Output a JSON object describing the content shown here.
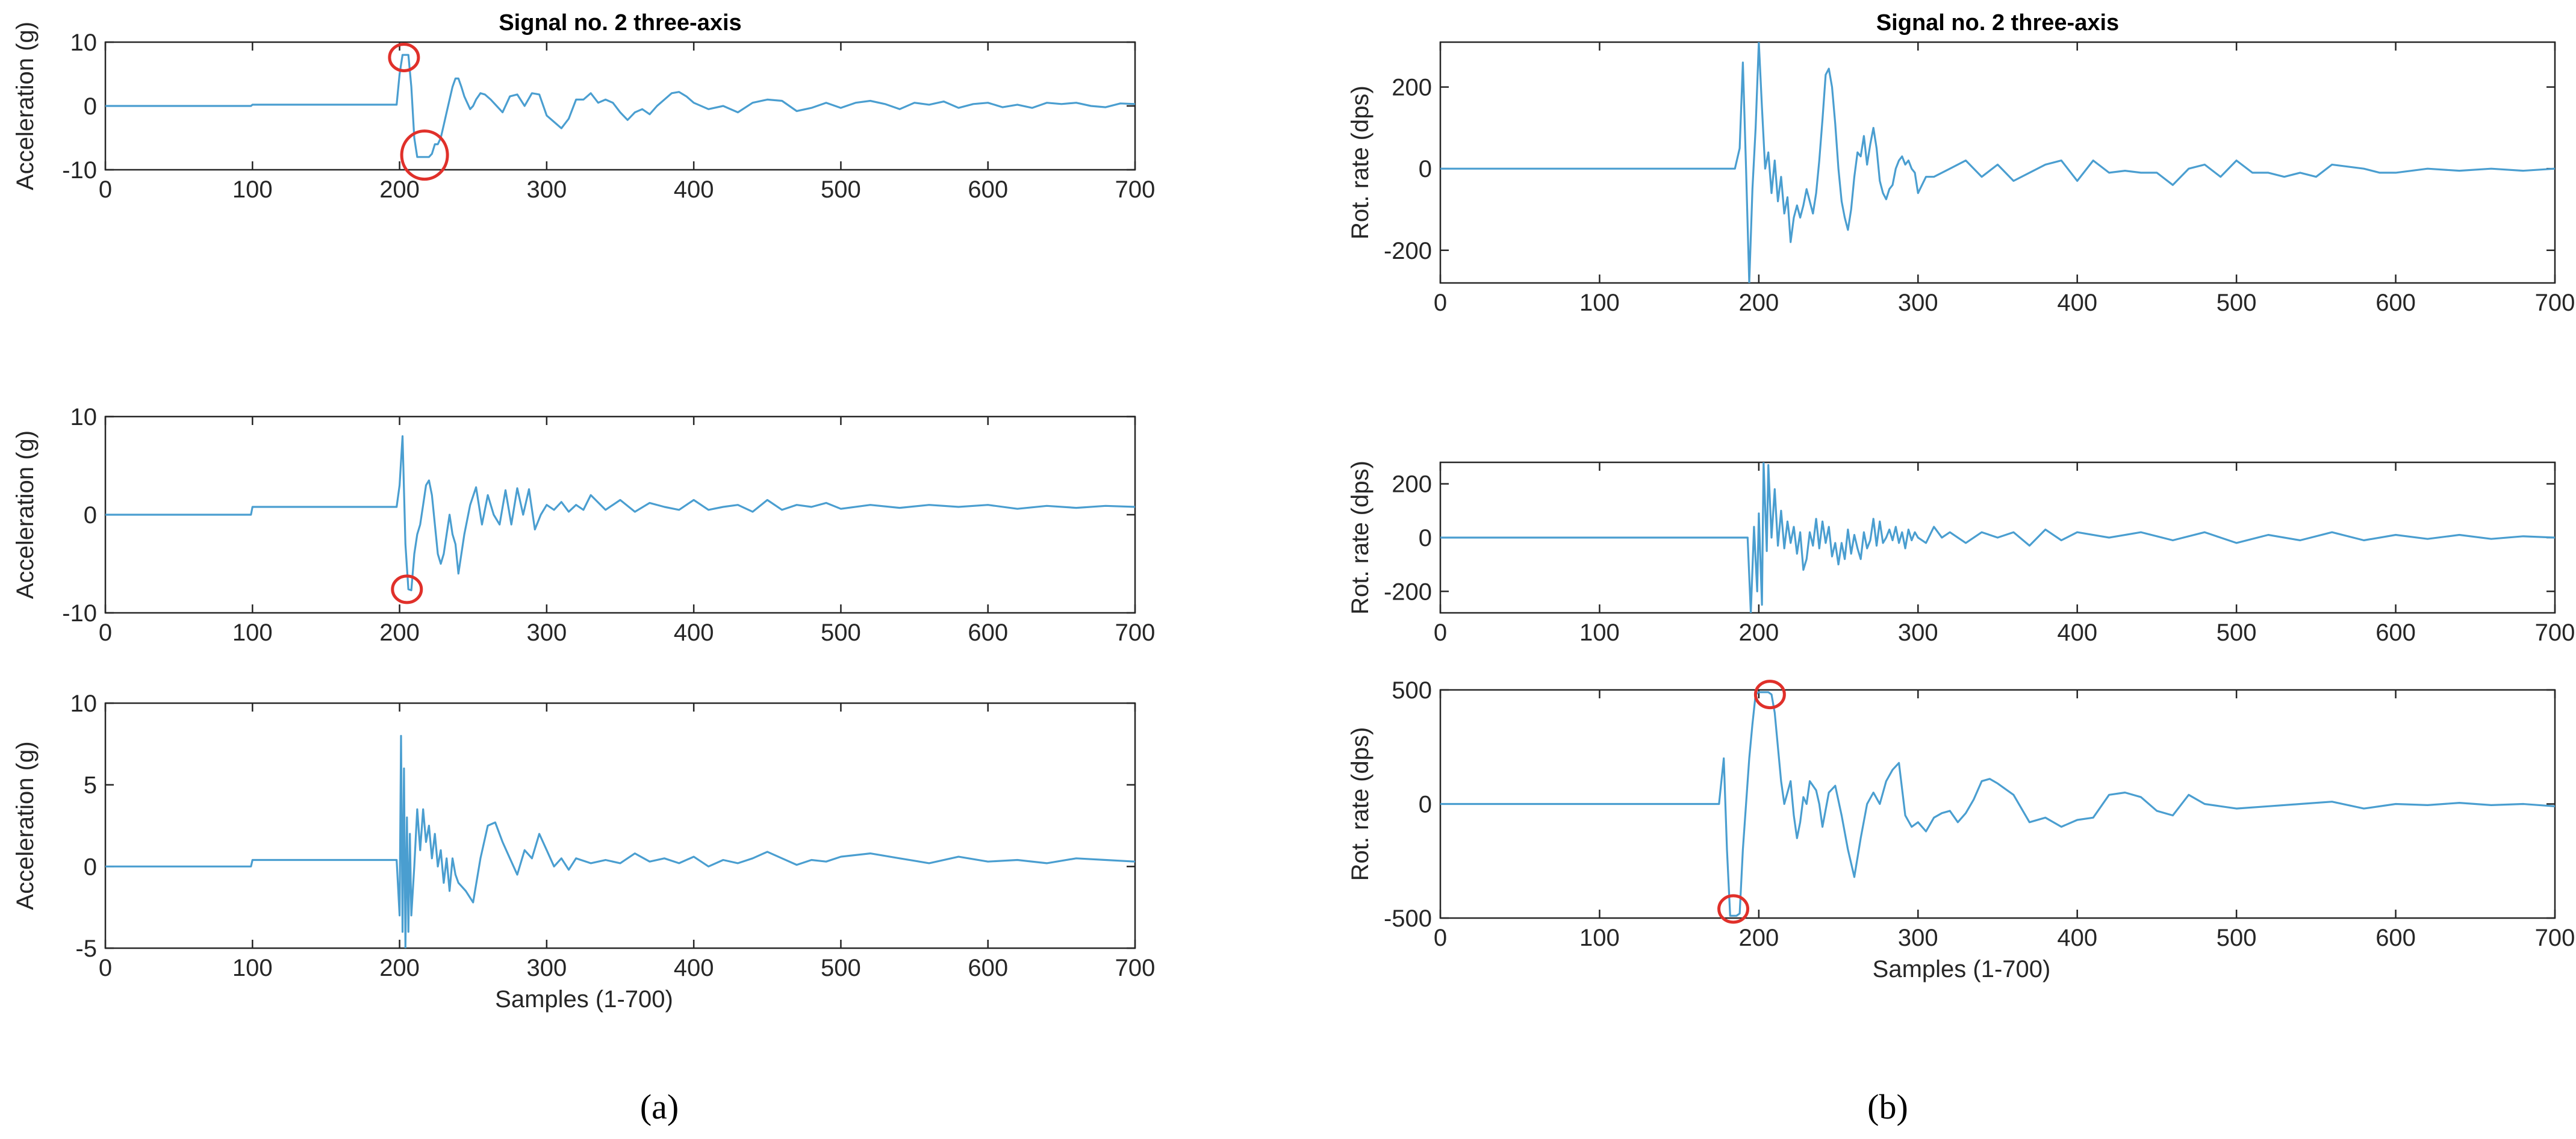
{
  "figure": {
    "captions": [
      "(a)",
      "(b)"
    ]
  },
  "chart_data": [
    {
      "id": "a1",
      "type": "line",
      "title": "Signal no. 2 three-axis",
      "xlabel": "",
      "ylabel": "Acceleration (g)",
      "xlim": [
        0,
        700
      ],
      "ylim": [
        -10,
        10
      ],
      "xticks": [
        0,
        100,
        200,
        300,
        400,
        500,
        600,
        700
      ],
      "yticks": [
        -10,
        0,
        10
      ],
      "color": "#4a9ed0",
      "x": [
        0,
        99,
        100,
        198,
        200,
        202,
        204,
        206,
        208,
        210,
        212,
        214,
        216,
        218,
        220,
        222,
        224,
        226,
        228,
        230,
        232,
        234,
        236,
        238,
        240,
        242,
        244,
        246,
        248,
        250,
        252,
        255,
        258,
        262,
        266,
        270,
        275,
        280,
        285,
        290,
        295,
        300,
        305,
        310,
        315,
        320,
        325,
        330,
        335,
        340,
        345,
        350,
        355,
        360,
        365,
        370,
        375,
        380,
        385,
        390,
        395,
        400,
        410,
        420,
        430,
        440,
        450,
        460,
        470,
        480,
        490,
        500,
        510,
        520,
        530,
        540,
        550,
        560,
        570,
        580,
        590,
        600,
        610,
        620,
        630,
        640,
        650,
        660,
        670,
        680,
        690,
        700
      ],
      "y": [
        0,
        0,
        0.2,
        0.2,
        5,
        8,
        8,
        8,
        3,
        -5,
        -8,
        -8,
        -8,
        -8,
        -8,
        -7.5,
        -6,
        -6,
        -5,
        -3,
        -1,
        1,
        3,
        4.3,
        4.3,
        3,
        1.5,
        0.5,
        -0.5,
        0,
        1,
        2,
        1.8,
        1,
        0,
        -1,
        1.5,
        1.8,
        0,
        2,
        1.8,
        -1.5,
        -2.5,
        -3.5,
        -2,
        1,
        1,
        2,
        0.5,
        1,
        0.5,
        -1,
        -2.2,
        -1,
        -0.5,
        -1.3,
        0,
        1,
        2,
        2.2,
        1.5,
        0.5,
        -0.5,
        0,
        -1,
        0.5,
        1,
        0.8,
        -0.8,
        -0.3,
        0.5,
        -0.3,
        0.5,
        0.8,
        0.3,
        -0.5,
        0.5,
        0.2,
        0.7,
        -0.3,
        0.3,
        0.5,
        -0.2,
        0.2,
        -0.3,
        0.5,
        0.3,
        0.5,
        0,
        -0.2,
        0.4,
        0.3
      ],
      "annotations": [
        {
          "label": "red-circle-peak",
          "x": 203,
          "y": 7.6
        },
        {
          "label": "red-circle-trough",
          "x": 217,
          "y": -7.7
        }
      ]
    },
    {
      "id": "a2",
      "type": "line",
      "title": "",
      "xlabel": "",
      "ylabel": "Acceleration (g)",
      "xlim": [
        0,
        700
      ],
      "ylim": [
        -10,
        10
      ],
      "xticks": [
        0,
        100,
        200,
        300,
        400,
        500,
        600,
        700
      ],
      "yticks": [
        -10,
        0,
        10
      ],
      "color": "#4a9ed0",
      "x": [
        0,
        99,
        100,
        198,
        200,
        202,
        204,
        206,
        208,
        210,
        212,
        214,
        216,
        218,
        220,
        222,
        224,
        226,
        228,
        230,
        232,
        234,
        236,
        238,
        240,
        244,
        248,
        252,
        256,
        260,
        264,
        268,
        272,
        276,
        280,
        284,
        288,
        292,
        296,
        300,
        305,
        310,
        315,
        320,
        325,
        330,
        340,
        350,
        360,
        370,
        380,
        390,
        400,
        410,
        420,
        430,
        440,
        450,
        460,
        470,
        480,
        490,
        500,
        520,
        540,
        560,
        580,
        600,
        620,
        640,
        660,
        680,
        700
      ],
      "y": [
        0,
        0,
        0.8,
        0.8,
        3,
        8,
        -3,
        -7.6,
        -7.7,
        -4,
        -2,
        -1,
        1,
        3,
        3.5,
        2,
        -1,
        -4,
        -5,
        -4,
        -2,
        0,
        -2,
        -3,
        -6,
        -2,
        1,
        2.8,
        -1,
        2,
        0,
        -1,
        2.5,
        -1,
        2.7,
        0,
        2.6,
        -1.5,
        0,
        1,
        0.5,
        1.3,
        0.3,
        1,
        0.5,
        2,
        0.5,
        1.5,
        0.3,
        1.2,
        0.8,
        0.5,
        1.5,
        0.5,
        0.8,
        1,
        0.3,
        1.5,
        0.5,
        1,
        0.8,
        1.2,
        0.6,
        1,
        0.7,
        1,
        0.8,
        1,
        0.6,
        0.9,
        0.7,
        0.9,
        0.8
      ],
      "annotations": [
        {
          "label": "red-circle-trough",
          "x": 205,
          "y": -7.6
        }
      ]
    },
    {
      "id": "a3",
      "type": "line",
      "title": "",
      "xlabel": "Samples (1-700)",
      "ylabel": "Acceleration (g)",
      "xlim": [
        0,
        700
      ],
      "ylim": [
        -5,
        10
      ],
      "xticks": [
        0,
        100,
        200,
        300,
        400,
        500,
        600,
        700
      ],
      "yticks": [
        -5,
        0,
        5,
        10
      ],
      "color": "#4a9ed0",
      "x": [
        0,
        99,
        100,
        198,
        200,
        201,
        202,
        203,
        204,
        205,
        206,
        207,
        208,
        210,
        212,
        214,
        216,
        218,
        220,
        222,
        224,
        226,
        228,
        230,
        232,
        234,
        236,
        238,
        240,
        245,
        250,
        255,
        260,
        265,
        270,
        275,
        280,
        285,
        290,
        295,
        300,
        305,
        310,
        315,
        320,
        330,
        340,
        350,
        360,
        370,
        380,
        390,
        400,
        410,
        420,
        430,
        440,
        450,
        460,
        470,
        480,
        490,
        500,
        520,
        540,
        560,
        580,
        600,
        620,
        640,
        660,
        680,
        700
      ],
      "y": [
        0,
        0,
        0.4,
        0.4,
        -3,
        8,
        -4,
        6,
        -5,
        3,
        -4,
        2,
        -3,
        0,
        3.5,
        1,
        3.5,
        1.5,
        2.5,
        0.5,
        2,
        0,
        1,
        -1,
        0.5,
        -1.5,
        0.5,
        -0.5,
        -1,
        -1.5,
        -2.2,
        0.5,
        2.5,
        2.7,
        1.5,
        0.5,
        -0.5,
        1,
        0.5,
        2,
        1,
        0,
        0.5,
        -0.2,
        0.5,
        0.2,
        0.4,
        0.2,
        0.8,
        0.3,
        0.5,
        0.2,
        0.6,
        0,
        0.4,
        0.2,
        0.5,
        0.9,
        0.5,
        0.1,
        0.4,
        0.3,
        0.6,
        0.8,
        0.5,
        0.2,
        0.6,
        0.3,
        0.4,
        0.2,
        0.5,
        0.4,
        0.3
      ],
      "annotations": []
    },
    {
      "id": "b1",
      "type": "line",
      "title": "Signal no. 2 three-axis",
      "xlabel": "",
      "ylabel": "Rot. rate (dps)",
      "xlim": [
        0,
        700
      ],
      "ylim": [
        -280,
        310
      ],
      "xticks": [
        0,
        100,
        200,
        300,
        400,
        500,
        600,
        700
      ],
      "yticks": [
        -200,
        0,
        200
      ],
      "color": "#4a9ed0",
      "x": [
        0,
        185,
        188,
        190,
        192,
        194,
        196,
        198,
        200,
        202,
        204,
        206,
        208,
        210,
        212,
        214,
        216,
        218,
        220,
        222,
        224,
        226,
        228,
        230,
        232,
        234,
        236,
        238,
        240,
        242,
        244,
        246,
        248,
        250,
        252,
        254,
        256,
        258,
        260,
        262,
        264,
        266,
        268,
        270,
        272,
        274,
        276,
        278,
        280,
        282,
        284,
        286,
        288,
        290,
        292,
        294,
        296,
        298,
        300,
        305,
        310,
        320,
        330,
        340,
        350,
        360,
        370,
        380,
        390,
        400,
        410,
        420,
        430,
        440,
        450,
        460,
        470,
        480,
        490,
        500,
        510,
        520,
        530,
        540,
        550,
        560,
        570,
        580,
        590,
        600,
        620,
        640,
        660,
        680,
        700
      ],
      "y": [
        0,
        0,
        50,
        260,
        0,
        -280,
        -50,
        100,
        310,
        150,
        0,
        40,
        -60,
        20,
        -80,
        -20,
        -110,
        -70,
        -180,
        -120,
        -90,
        -120,
        -90,
        -50,
        -80,
        -110,
        -60,
        20,
        120,
        230,
        245,
        200,
        110,
        0,
        -80,
        -120,
        -150,
        -100,
        -20,
        40,
        30,
        80,
        10,
        60,
        100,
        50,
        -30,
        -60,
        -75,
        -50,
        -40,
        0,
        20,
        30,
        10,
        20,
        0,
        -10,
        -60,
        -20,
        -20,
        0,
        20,
        -20,
        10,
        -30,
        -10,
        10,
        20,
        -30,
        20,
        -10,
        -5,
        -10,
        -10,
        -40,
        0,
        10,
        -20,
        20,
        -10,
        -10,
        -20,
        -10,
        -20,
        10,
        5,
        0,
        -10,
        -10,
        0,
        -5,
        0,
        -5,
        0
      ],
      "annotations": []
    },
    {
      "id": "b2",
      "type": "line",
      "title": "",
      "xlabel": "",
      "ylabel": "Rot. rate (dps)",
      "xlim": [
        0,
        700
      ],
      "ylim": [
        -280,
        280
      ],
      "xticks": [
        0,
        100,
        200,
        300,
        400,
        500,
        600,
        700
      ],
      "yticks": [
        -200,
        0,
        200
      ],
      "color": "#4a9ed0",
      "x": [
        0,
        193,
        195,
        197,
        199,
        200,
        202,
        203,
        205,
        206,
        208,
        210,
        212,
        214,
        216,
        218,
        220,
        222,
        224,
        226,
        228,
        230,
        232,
        234,
        236,
        238,
        240,
        242,
        244,
        246,
        248,
        250,
        252,
        254,
        256,
        258,
        260,
        262,
        264,
        266,
        268,
        270,
        272,
        274,
        276,
        278,
        280,
        282,
        284,
        286,
        288,
        290,
        292,
        294,
        296,
        298,
        300,
        305,
        310,
        315,
        320,
        330,
        340,
        350,
        360,
        370,
        380,
        390,
        400,
        420,
        440,
        460,
        480,
        500,
        520,
        540,
        560,
        580,
        600,
        620,
        640,
        660,
        680,
        700
      ],
      "y": [
        0,
        0,
        -280,
        40,
        -200,
        90,
        -250,
        280,
        -50,
        270,
        0,
        180,
        -30,
        100,
        -40,
        60,
        -20,
        40,
        -60,
        20,
        -120,
        -80,
        20,
        -30,
        70,
        -40,
        60,
        -20,
        40,
        -70,
        -20,
        -100,
        -20,
        -80,
        30,
        -60,
        10,
        -40,
        -80,
        20,
        -40,
        -10,
        70,
        -30,
        60,
        -20,
        0,
        30,
        -10,
        40,
        -20,
        20,
        -40,
        30,
        -10,
        20,
        0,
        -20,
        40,
        0,
        20,
        -20,
        20,
        0,
        20,
        -30,
        30,
        -10,
        20,
        0,
        20,
        -10,
        20,
        -20,
        10,
        -10,
        20,
        -10,
        10,
        -5,
        10,
        -5,
        5,
        0
      ],
      "annotations": []
    },
    {
      "id": "b3",
      "type": "line",
      "title": "",
      "xlabel": "Samples (1-700)",
      "ylabel": "Rot. rate (dps)",
      "xlim": [
        0,
        700
      ],
      "ylim": [
        -500,
        500
      ],
      "xticks": [
        0,
        100,
        200,
        300,
        400,
        500,
        600,
        700
      ],
      "yticks": [
        -500,
        0,
        500
      ],
      "color": "#4a9ed0",
      "x": [
        0,
        175,
        178,
        180,
        182,
        184,
        186,
        188,
        190,
        192,
        194,
        196,
        198,
        200,
        202,
        204,
        206,
        208,
        210,
        212,
        214,
        216,
        218,
        220,
        222,
        224,
        226,
        228,
        230,
        232,
        234,
        236,
        238,
        240,
        244,
        248,
        252,
        256,
        260,
        264,
        268,
        272,
        276,
        280,
        284,
        288,
        292,
        296,
        300,
        305,
        310,
        315,
        320,
        325,
        330,
        335,
        340,
        345,
        350,
        360,
        370,
        380,
        390,
        400,
        410,
        420,
        430,
        440,
        450,
        460,
        470,
        480,
        490,
        500,
        520,
        540,
        560,
        580,
        600,
        620,
        640,
        660,
        680,
        700
      ],
      "y": [
        0,
        0,
        200,
        -200,
        -490,
        -490,
        -490,
        -480,
        -200,
        0,
        200,
        350,
        480,
        490,
        490,
        490,
        490,
        480,
        400,
        250,
        100,
        0,
        50,
        100,
        -50,
        -150,
        -80,
        30,
        0,
        100,
        80,
        60,
        0,
        -100,
        50,
        80,
        -50,
        -200,
        -320,
        -150,
        0,
        50,
        0,
        100,
        150,
        180,
        -50,
        -100,
        -80,
        -120,
        -60,
        -40,
        -30,
        -80,
        -40,
        20,
        100,
        110,
        90,
        40,
        -80,
        -60,
        -100,
        -70,
        -60,
        40,
        50,
        30,
        -30,
        -50,
        40,
        0,
        -10,
        -20,
        -10,
        0,
        10,
        -20,
        0,
        -5,
        5,
        -5,
        0,
        -10
      ],
      "annotations": [
        {
          "label": "red-circle-trough",
          "x": 184,
          "y": -460
        },
        {
          "label": "red-circle-peak",
          "x": 207,
          "y": 480
        }
      ]
    }
  ]
}
